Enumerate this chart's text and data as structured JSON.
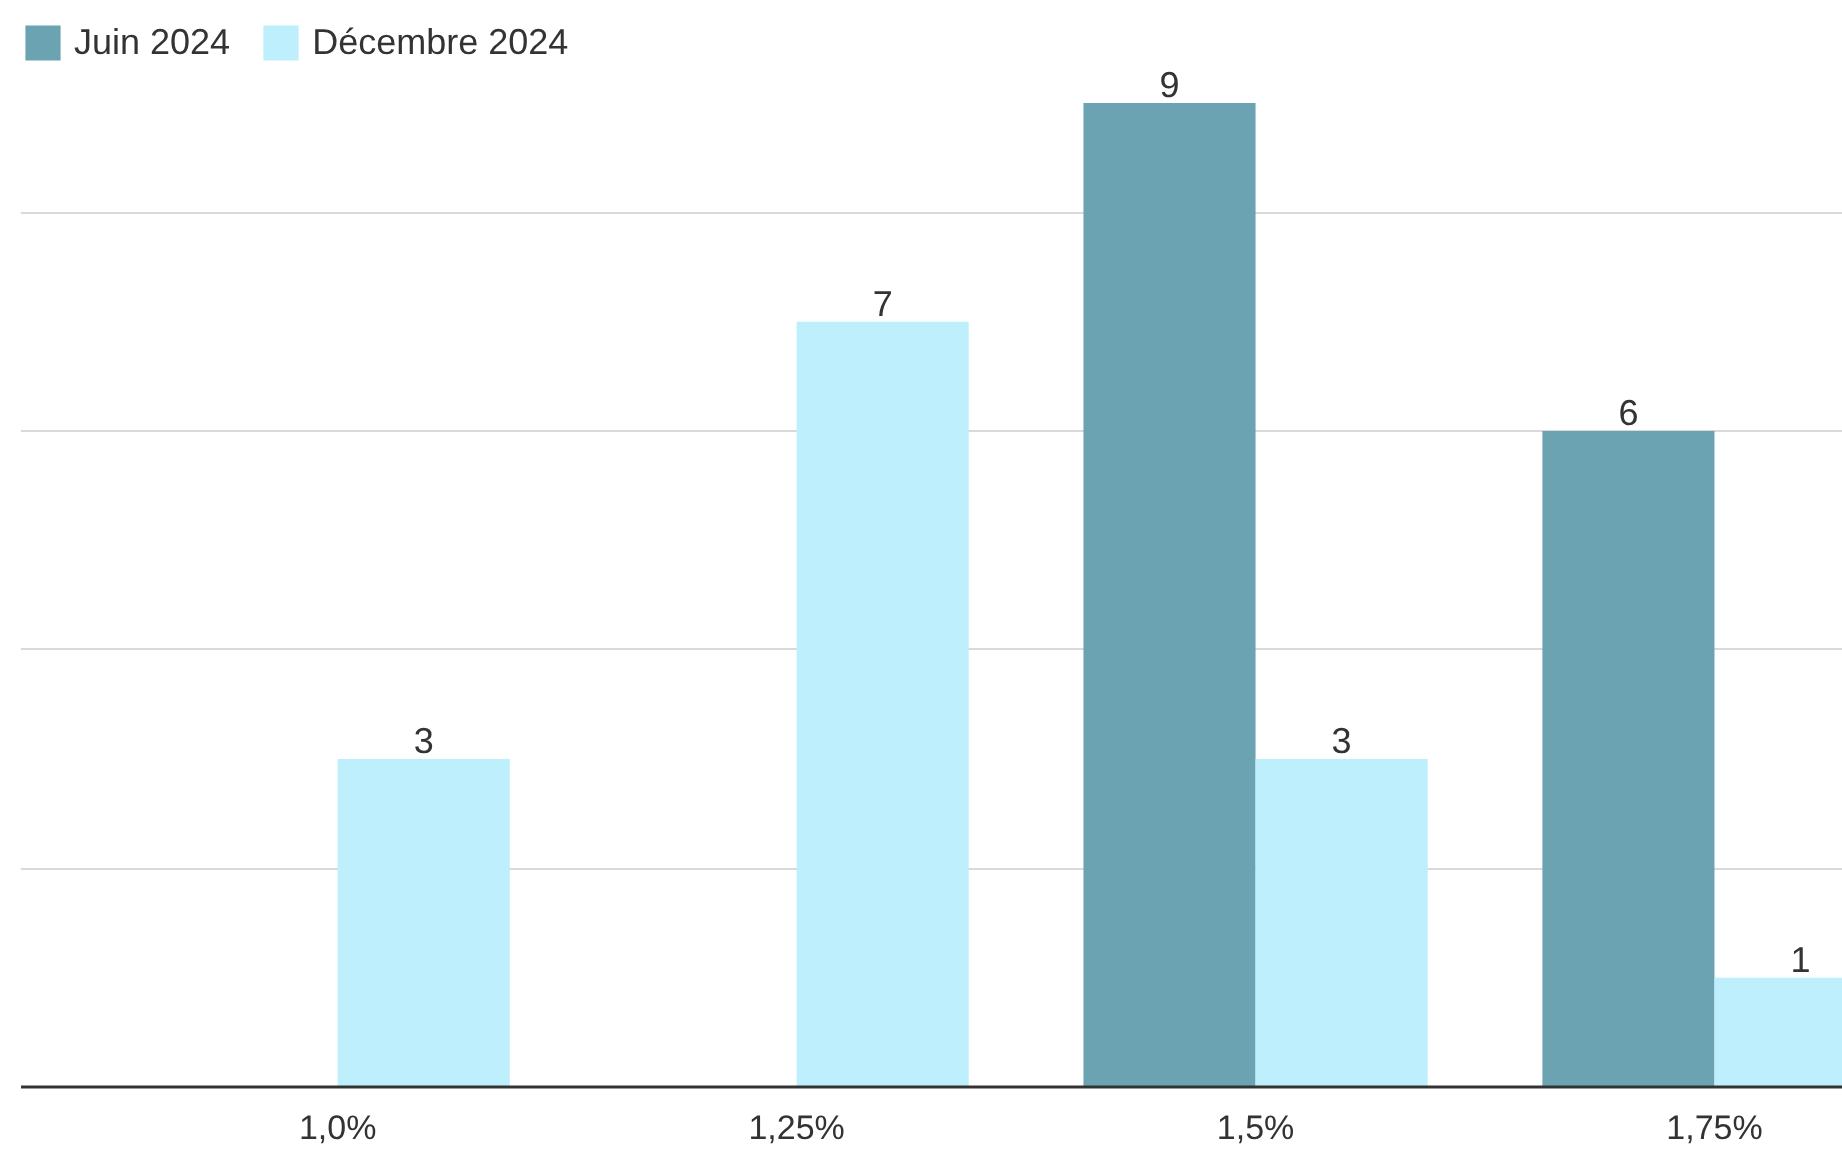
{
  "chart_data": {
    "type": "bar",
    "categories": [
      "1,0%",
      "1,25%",
      "1,5%",
      "1,75%"
    ],
    "series": [
      {
        "name": "Juin 2024",
        "color": "#6ba3b3",
        "values": [
          null,
          null,
          9,
          6
        ]
      },
      {
        "name": "Décembre 2024",
        "color": "#bdeffc",
        "values": [
          3,
          7,
          3,
          1
        ]
      }
    ],
    "ylim": [
      0,
      9.75
    ],
    "yticks": [
      {
        "value": 0,
        "label": null
      },
      {
        "value": 2,
        "label": null
      },
      {
        "value": 4,
        "label": null
      },
      {
        "value": 6,
        "label": null
      },
      {
        "value": 8,
        "label": null
      }
    ],
    "grid": "y",
    "legend": "top left",
    "tick_labels": "x",
    "data_labels": true
  }
}
